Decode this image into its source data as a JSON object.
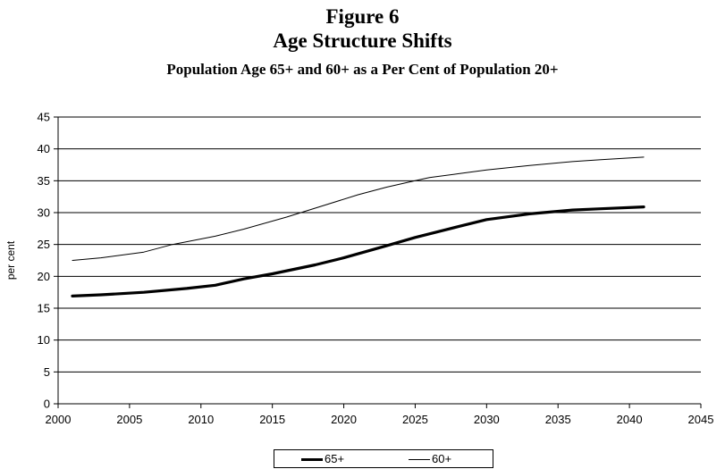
{
  "figure_label": "Figure 6",
  "chart_data": {
    "type": "line",
    "title": "Age Structure Shifts",
    "subtitle": "Population Age 65+ and 60+ as a Per Cent of Population 20+",
    "xlabel": "",
    "ylabel": "per cent",
    "xlim": [
      2000,
      2045
    ],
    "ylim": [
      0,
      45
    ],
    "x_ticks": [
      2000,
      2005,
      2010,
      2015,
      2020,
      2025,
      2030,
      2035,
      2040,
      2045
    ],
    "y_ticks": [
      0,
      5,
      10,
      15,
      20,
      25,
      30,
      35,
      40,
      45
    ],
    "grid": "horizontal",
    "legend_position": "bottom",
    "series": [
      {
        "name": "65+",
        "color": "#000000",
        "style": "thick",
        "x": [
          2001,
          2003,
          2006,
          2009,
          2011,
          2013,
          2015,
          2018,
          2020,
          2023,
          2025,
          2028,
          2030,
          2033,
          2036,
          2038,
          2041
        ],
        "y": [
          16.9,
          17.1,
          17.5,
          18.1,
          18.6,
          19.6,
          20.4,
          21.8,
          22.9,
          24.8,
          26.1,
          27.8,
          28.9,
          29.8,
          30.4,
          30.6,
          30.9
        ]
      },
      {
        "name": "60+",
        "color": "#000000",
        "style": "thin",
        "x": [
          2001,
          2003,
          2006,
          2008,
          2011,
          2013,
          2016,
          2018,
          2021,
          2023,
          2025,
          2026,
          2028,
          2030,
          2033,
          2036,
          2038,
          2041
        ],
        "y": [
          22.5,
          22.9,
          23.8,
          25.0,
          26.3,
          27.4,
          29.3,
          30.7,
          32.8,
          34.0,
          35.0,
          35.5,
          36.1,
          36.7,
          37.4,
          38.0,
          38.3,
          38.7
        ]
      }
    ]
  }
}
